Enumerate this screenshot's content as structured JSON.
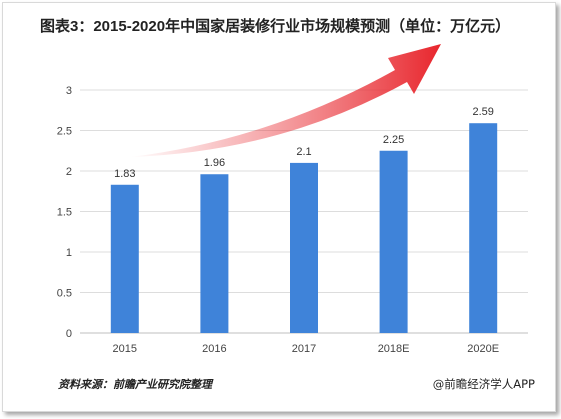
{
  "title": "图表3：2015-2020年中国家居装修行业市场规模预测（单位：万亿元）",
  "source": "资料来源：前瞻产业研究院整理",
  "brand": "@前瞻经济学人APP",
  "colors": {
    "bar": "#3f83d9",
    "arrow": "#e8262d",
    "grid": "#dddddd",
    "axis_text": "#444444"
  },
  "chart_data": {
    "type": "bar",
    "categories": [
      "2015",
      "2016",
      "2017",
      "2018E",
      "2020E"
    ],
    "values": [
      1.83,
      1.96,
      2.1,
      2.25,
      2.59
    ],
    "value_labels": [
      "1.83",
      "1.96",
      "2.1",
      "2.25",
      "2.59"
    ],
    "y_ticks": [
      "0",
      "0.5",
      "1",
      "1.5",
      "2",
      "2.5",
      "3"
    ],
    "ylim": [
      0,
      3
    ],
    "xlabel": "",
    "ylabel": "",
    "grid": true,
    "legend": "none",
    "decoration": "red-gradient-growth-arrow"
  }
}
